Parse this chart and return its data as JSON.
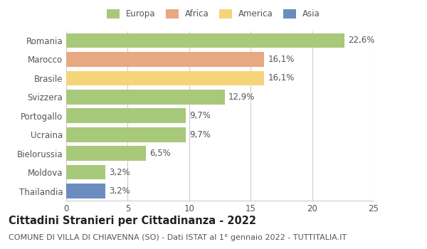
{
  "categories": [
    "Romania",
    "Marocco",
    "Brasile",
    "Svizzera",
    "Portogallo",
    "Ucraina",
    "Bielorussia",
    "Moldova",
    "Thailandia"
  ],
  "values": [
    22.6,
    16.1,
    16.1,
    12.9,
    9.7,
    9.7,
    6.5,
    3.2,
    3.2
  ],
  "labels": [
    "22,6%",
    "16,1%",
    "16,1%",
    "12,9%",
    "9,7%",
    "9,7%",
    "6,5%",
    "3,2%",
    "3,2%"
  ],
  "colors": [
    "#a8c87a",
    "#e8a882",
    "#f5d47a",
    "#a8c87a",
    "#a8c87a",
    "#a8c87a",
    "#a8c87a",
    "#a8c87a",
    "#6b8cbf"
  ],
  "legend_labels": [
    "Europa",
    "Africa",
    "America",
    "Asia"
  ],
  "legend_colors": [
    "#a8c87a",
    "#e8a882",
    "#f5d47a",
    "#6b8cbf"
  ],
  "xlim": [
    0,
    25
  ],
  "xticks": [
    0,
    5,
    10,
    15,
    20,
    25
  ],
  "title": "Cittadini Stranieri per Cittadinanza - 2022",
  "subtitle": "COMUNE DI VILLA DI CHIAVENNA (SO) - Dati ISTAT al 1° gennaio 2022 - TUTTITALIA.IT",
  "background_color": "#ffffff",
  "bar_height": 0.78,
  "grid_color": "#cccccc",
  "label_fontsize": 8.5,
  "tick_fontsize": 8.5,
  "title_fontsize": 10.5,
  "subtitle_fontsize": 8,
  "ytick_color": "#555555",
  "xtick_color": "#555555",
  "label_color": "#555555",
  "title_color": "#222222",
  "subtitle_color": "#555555"
}
